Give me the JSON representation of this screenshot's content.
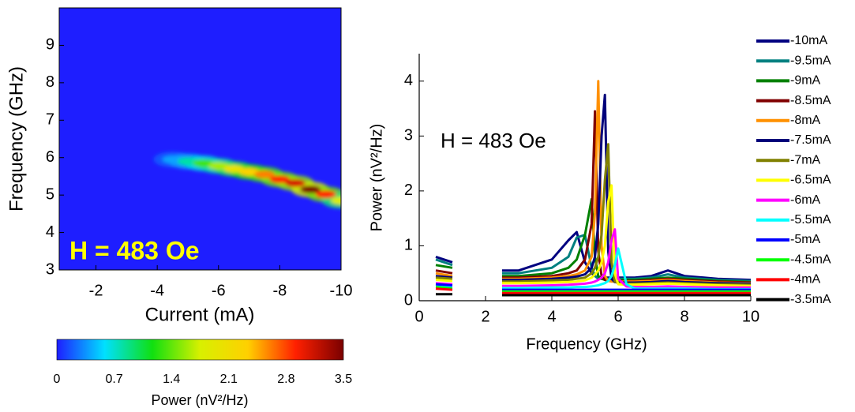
{
  "chart_data": [
    {
      "type": "heatmap",
      "x_label": "Current (mA)",
      "y_label": "Frequency (GHz)",
      "annotation": "H = 483 Oe",
      "xlim": [
        -0.8,
        -10
      ],
      "xticks": [
        -2,
        -4,
        -6,
        -8,
        -10
      ],
      "ylim": [
        3,
        10
      ],
      "yticks": [
        3,
        4,
        5,
        6,
        7,
        8,
        9
      ],
      "x": [
        -4.5,
        -5,
        -5.5,
        -6,
        -6.5,
        -7,
        -7.5,
        -8,
        -8.5,
        -9,
        -9.5,
        -10
      ],
      "y": [
        5.95,
        5.9,
        5.85,
        5.78,
        5.7,
        5.62,
        5.55,
        5.42,
        5.32,
        5.15,
        5.02,
        4.85
      ],
      "values": [
        0.4,
        0.8,
        1.3,
        1.6,
        2.0,
        2.3,
        2.6,
        2.9,
        3.1,
        3.5,
        2.9,
        1.8
      ],
      "zlim": [
        0,
        3.5
      ],
      "zticks": [
        0,
        0.7,
        1.4,
        2.1,
        2.8,
        3.5
      ],
      "colorbar_label": "Power (nV²/Hz)",
      "colormap": [
        "#1e1eff",
        "#00e0ff",
        "#10e010",
        "#d8f000",
        "#ffd000",
        "#ff2000",
        "#7a0000"
      ]
    },
    {
      "type": "line",
      "x_label": "Frequency (GHz)",
      "y_label": "Power (nV²/Hz)",
      "annotation": "H = 483 Oe",
      "xlim": [
        0,
        10
      ],
      "xticks": [
        0,
        2,
        4,
        6,
        8,
        10
      ],
      "ylim": [
        0,
        4.5
      ],
      "yticks": [
        0,
        1,
        2,
        3,
        4
      ],
      "legend": "right",
      "x": [
        0.5,
        1,
        1.5,
        2,
        2.2,
        2.5,
        3,
        4,
        4.5,
        4.75,
        5,
        5.2,
        5.3,
        5.4,
        5.5,
        5.6,
        5.7,
        5.8,
        5.9,
        6,
        6.25,
        6.5,
        7,
        7.5,
        8,
        9,
        10
      ],
      "series": [
        {
          "name": "-10mA",
          "color": "#000080",
          "values": [
            0.8,
            0.7,
            null,
            0.45,
            null,
            0.55,
            0.55,
            0.75,
            1.1,
            1.25,
            0.7,
            0.5,
            0.45,
            0.42,
            0.42,
            0.42,
            0.42,
            0.42,
            0.42,
            0.42,
            0.42,
            0.42,
            0.45,
            0.55,
            0.45,
            0.4,
            0.38
          ]
        },
        {
          "name": "-9.5mA",
          "color": "#008080",
          "values": [
            0.75,
            0.65,
            null,
            0.45,
            null,
            0.5,
            0.5,
            0.6,
            0.8,
            1.15,
            1.2,
            0.6,
            0.45,
            0.4,
            0.4,
            0.4,
            0.4,
            0.4,
            0.4,
            0.4,
            0.4,
            0.4,
            0.42,
            0.48,
            0.42,
            0.38,
            0.36
          ]
        },
        {
          "name": "-9mA",
          "color": "#008000",
          "values": [
            0.65,
            0.6,
            null,
            0.42,
            null,
            0.45,
            0.45,
            0.5,
            0.6,
            0.75,
            1.2,
            1.85,
            0.8,
            0.45,
            0.4,
            0.38,
            0.38,
            0.38,
            0.38,
            0.38,
            0.38,
            0.38,
            0.4,
            0.42,
            0.4,
            0.36,
            0.34
          ]
        },
        {
          "name": "-8.5mA",
          "color": "#800000",
          "values": [
            0.55,
            0.5,
            null,
            0.4,
            null,
            0.42,
            0.42,
            0.45,
            0.5,
            0.55,
            0.75,
            1.4,
            3.45,
            0.9,
            0.45,
            0.38,
            0.36,
            0.36,
            0.36,
            0.36,
            0.36,
            0.36,
            0.38,
            0.4,
            0.38,
            0.35,
            0.33
          ]
        },
        {
          "name": "-8mA",
          "color": "#ff9000",
          "values": [
            0.5,
            0.45,
            null,
            0.38,
            null,
            0.4,
            0.4,
            0.42,
            0.45,
            0.48,
            0.55,
            0.8,
            1.6,
            4.0,
            1.0,
            0.45,
            0.36,
            0.35,
            0.35,
            0.35,
            0.35,
            0.35,
            0.36,
            0.38,
            0.36,
            0.33,
            0.32
          ]
        },
        {
          "name": "-7.5mA",
          "color": "#00007a",
          "values": [
            0.45,
            0.42,
            null,
            0.36,
            null,
            0.38,
            0.38,
            0.4,
            0.42,
            0.44,
            0.48,
            0.6,
            0.8,
            1.4,
            3.0,
            3.75,
            0.9,
            0.4,
            0.34,
            0.33,
            0.33,
            0.33,
            0.34,
            0.36,
            0.34,
            0.32,
            0.31
          ]
        },
        {
          "name": "-7mA",
          "color": "#808000",
          "values": [
            0.42,
            0.4,
            null,
            0.34,
            null,
            0.35,
            0.35,
            0.37,
            0.38,
            0.4,
            0.42,
            0.5,
            0.6,
            0.8,
            1.2,
            2.2,
            2.85,
            0.7,
            0.35,
            0.32,
            0.31,
            0.31,
            0.32,
            0.33,
            0.32,
            0.3,
            0.29
          ]
        },
        {
          "name": "-6.5mA",
          "color": "#ffff00",
          "values": [
            0.38,
            0.36,
            null,
            0.3,
            null,
            0.32,
            0.32,
            0.33,
            0.34,
            0.35,
            0.37,
            0.42,
            0.48,
            0.55,
            0.7,
            1.0,
            1.8,
            2.1,
            0.5,
            0.3,
            0.29,
            0.29,
            0.3,
            0.31,
            0.3,
            0.28,
            0.27
          ]
        },
        {
          "name": "-6mA",
          "color": "#ff00ff",
          "values": [
            0.32,
            0.3,
            null,
            0.26,
            null,
            0.27,
            0.27,
            0.28,
            0.29,
            0.3,
            0.31,
            0.33,
            0.35,
            0.38,
            0.42,
            0.5,
            0.7,
            1.1,
            1.3,
            0.4,
            0.26,
            0.25,
            0.25,
            0.26,
            0.25,
            0.24,
            0.24
          ]
        },
        {
          "name": "-5.5mA",
          "color": "#00ffff",
          "values": [
            0.28,
            0.26,
            null,
            0.22,
            null,
            0.23,
            0.23,
            0.24,
            0.24,
            0.25,
            0.25,
            0.26,
            0.27,
            0.28,
            0.3,
            0.32,
            0.36,
            0.45,
            0.65,
            0.95,
            0.3,
            0.22,
            0.22,
            0.22,
            0.22,
            0.21,
            0.21
          ]
        },
        {
          "name": "-5mA",
          "color": "#0000ff",
          "values": [
            0.3,
            0.28,
            null,
            0.22,
            null,
            0.2,
            0.2,
            0.2,
            0.2,
            0.2,
            0.2,
            0.2,
            0.2,
            0.2,
            0.2,
            0.2,
            0.2,
            0.2,
            0.2,
            0.2,
            0.2,
            0.2,
            0.2,
            0.2,
            0.2,
            0.2,
            0.2
          ]
        },
        {
          "name": "-4.5mA",
          "color": "#00ff00",
          "values": [
            0.25,
            0.22,
            null,
            0.18,
            null,
            0.17,
            0.17,
            0.17,
            0.17,
            0.17,
            0.17,
            0.17,
            0.17,
            0.17,
            0.17,
            0.17,
            0.17,
            0.17,
            0.17,
            0.17,
            0.17,
            0.17,
            0.17,
            0.17,
            0.17,
            0.17,
            0.17
          ]
        },
        {
          "name": "-4mA",
          "color": "#ff0000",
          "values": [
            0.22,
            0.2,
            null,
            0.15,
            null,
            0.14,
            0.14,
            0.14,
            0.14,
            0.14,
            0.14,
            0.14,
            0.14,
            0.14,
            0.14,
            0.14,
            0.14,
            0.14,
            0.14,
            0.14,
            0.14,
            0.14,
            0.14,
            0.14,
            0.14,
            0.14,
            0.14
          ]
        },
        {
          "name": "-3.5mA",
          "color": "#000000",
          "values": [
            0.12,
            0.12,
            null,
            0.1,
            null,
            0.1,
            0.1,
            0.1,
            0.1,
            0.1,
            0.1,
            0.1,
            0.1,
            0.1,
            0.1,
            0.1,
            0.1,
            0.1,
            0.1,
            0.1,
            0.1,
            0.1,
            0.1,
            0.1,
            0.1,
            0.1,
            0.1
          ]
        }
      ]
    }
  ]
}
